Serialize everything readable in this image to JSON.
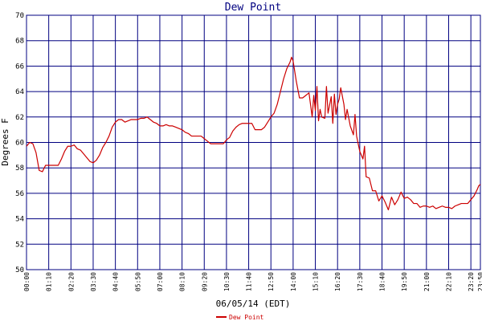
{
  "chart_data": {
    "type": "line",
    "title": "Dew Point",
    "xlabel": "06/05/14 (EDT)",
    "ylabel": "Degrees F",
    "ylim": [
      50,
      70
    ],
    "y_ticks": [
      50,
      52,
      54,
      56,
      58,
      60,
      62,
      64,
      66,
      68,
      70
    ],
    "x_ticks": [
      "00:00",
      "01:10",
      "02:20",
      "03:30",
      "04:40",
      "05:50",
      "07:00",
      "08:10",
      "09:20",
      "10:30",
      "11:40",
      "12:50",
      "14:00",
      "15:10",
      "16:20",
      "17:30",
      "18:40",
      "19:50",
      "21:00",
      "22:10",
      "23:20",
      "23:50"
    ],
    "grid": true,
    "legend_position": "bottom-center",
    "colors": {
      "series": "#cc0000",
      "grid": "#000080",
      "title": "#000080",
      "text": "#000000"
    },
    "series": [
      {
        "name": "Dew Point",
        "points": [
          [
            "00:00",
            59.7
          ],
          [
            "00:10",
            60.0
          ],
          [
            "00:20",
            59.9
          ],
          [
            "00:30",
            59.2
          ],
          [
            "00:40",
            57.8
          ],
          [
            "00:50",
            57.7
          ],
          [
            "01:00",
            58.2
          ],
          [
            "01:20",
            58.2
          ],
          [
            "01:40",
            58.2
          ],
          [
            "01:50",
            58.7
          ],
          [
            "02:00",
            59.3
          ],
          [
            "02:10",
            59.7
          ],
          [
            "02:20",
            59.7
          ],
          [
            "02:30",
            59.8
          ],
          [
            "02:40",
            59.5
          ],
          [
            "02:50",
            59.4
          ],
          [
            "03:00",
            59.1
          ],
          [
            "03:10",
            58.8
          ],
          [
            "03:20",
            58.5
          ],
          [
            "03:30",
            58.4
          ],
          [
            "03:40",
            58.6
          ],
          [
            "03:50",
            59.0
          ],
          [
            "04:00",
            59.6
          ],
          [
            "04:10",
            60.0
          ],
          [
            "04:20",
            60.5
          ],
          [
            "04:30",
            61.2
          ],
          [
            "04:40",
            61.6
          ],
          [
            "04:50",
            61.8
          ],
          [
            "05:00",
            61.8
          ],
          [
            "05:10",
            61.6
          ],
          [
            "05:20",
            61.7
          ],
          [
            "05:30",
            61.8
          ],
          [
            "05:40",
            61.8
          ],
          [
            "05:50",
            61.8
          ],
          [
            "06:00",
            61.9
          ],
          [
            "06:10",
            61.9
          ],
          [
            "06:20",
            62.0
          ],
          [
            "06:30",
            61.8
          ],
          [
            "06:40",
            61.6
          ],
          [
            "06:50",
            61.5
          ],
          [
            "07:00",
            61.3
          ],
          [
            "07:10",
            61.3
          ],
          [
            "07:20",
            61.4
          ],
          [
            "07:30",
            61.3
          ],
          [
            "07:40",
            61.3
          ],
          [
            "07:50",
            61.2
          ],
          [
            "08:00",
            61.1
          ],
          [
            "08:10",
            61.0
          ],
          [
            "08:20",
            60.8
          ],
          [
            "08:30",
            60.7
          ],
          [
            "08:40",
            60.5
          ],
          [
            "08:50",
            60.5
          ],
          [
            "09:00",
            60.5
          ],
          [
            "09:10",
            60.5
          ],
          [
            "09:20",
            60.3
          ],
          [
            "09:30",
            60.1
          ],
          [
            "09:40",
            59.9
          ],
          [
            "09:50",
            59.9
          ],
          [
            "10:00",
            59.9
          ],
          [
            "10:10",
            59.9
          ],
          [
            "10:20",
            59.9
          ],
          [
            "10:30",
            60.2
          ],
          [
            "10:40",
            60.4
          ],
          [
            "10:50",
            60.9
          ],
          [
            "11:00",
            61.2
          ],
          [
            "11:10",
            61.4
          ],
          [
            "11:20",
            61.5
          ],
          [
            "11:30",
            61.5
          ],
          [
            "11:40",
            61.5
          ],
          [
            "11:50",
            61.5
          ],
          [
            "12:00",
            61.0
          ],
          [
            "12:10",
            61.0
          ],
          [
            "12:20",
            61.0
          ],
          [
            "12:30",
            61.2
          ],
          [
            "12:40",
            61.6
          ],
          [
            "12:50",
            62.0
          ],
          [
            "13:00",
            62.3
          ],
          [
            "13:10",
            63.0
          ],
          [
            "13:20",
            64.0
          ],
          [
            "13:30",
            65.0
          ],
          [
            "13:40",
            65.8
          ],
          [
            "13:50",
            66.3
          ],
          [
            "13:55",
            66.7
          ],
          [
            "14:00",
            66.4
          ],
          [
            "14:10",
            64.8
          ],
          [
            "14:20",
            63.5
          ],
          [
            "14:30",
            63.5
          ],
          [
            "14:40",
            63.7
          ],
          [
            "14:50",
            63.9
          ],
          [
            "15:00",
            62.0
          ],
          [
            "15:05",
            63.7
          ],
          [
            "15:10",
            62.5
          ],
          [
            "15:15",
            64.4
          ],
          [
            "15:20",
            61.7
          ],
          [
            "15:25",
            62.6
          ],
          [
            "15:30",
            62.0
          ],
          [
            "15:40",
            61.9
          ],
          [
            "15:45",
            64.4
          ],
          [
            "15:50",
            62.3
          ],
          [
            "16:00",
            63.6
          ],
          [
            "16:05",
            61.5
          ],
          [
            "16:10",
            63.8
          ],
          [
            "16:15",
            62.2
          ],
          [
            "16:20",
            63.0
          ],
          [
            "16:25",
            63.4
          ],
          [
            "16:30",
            64.3
          ],
          [
            "16:40",
            63.0
          ],
          [
            "16:45",
            61.8
          ],
          [
            "16:50",
            62.6
          ],
          [
            "17:00",
            61.3
          ],
          [
            "17:10",
            60.6
          ],
          [
            "17:15",
            62.2
          ],
          [
            "17:20",
            60.5
          ],
          [
            "17:30",
            59.3
          ],
          [
            "17:40",
            58.7
          ],
          [
            "17:45",
            59.7
          ],
          [
            "17:50",
            57.3
          ],
          [
            "18:00",
            57.2
          ],
          [
            "18:10",
            56.2
          ],
          [
            "18:20",
            56.2
          ],
          [
            "18:30",
            55.4
          ],
          [
            "18:40",
            55.8
          ],
          [
            "18:50",
            55.3
          ],
          [
            "19:00",
            54.7
          ],
          [
            "19:10",
            55.7
          ],
          [
            "19:20",
            55.1
          ],
          [
            "19:30",
            55.5
          ],
          [
            "19:40",
            56.1
          ],
          [
            "19:50",
            55.6
          ],
          [
            "20:00",
            55.7
          ],
          [
            "20:10",
            55.5
          ],
          [
            "20:20",
            55.2
          ],
          [
            "20:30",
            55.2
          ],
          [
            "20:40",
            54.9
          ],
          [
            "20:50",
            55.0
          ],
          [
            "21:00",
            55.0
          ],
          [
            "21:10",
            54.9
          ],
          [
            "21:20",
            55.0
          ],
          [
            "21:30",
            54.8
          ],
          [
            "21:40",
            54.9
          ],
          [
            "21:50",
            55.0
          ],
          [
            "22:00",
            54.9
          ],
          [
            "22:10",
            54.9
          ],
          [
            "22:20",
            54.8
          ],
          [
            "22:30",
            55.0
          ],
          [
            "22:40",
            55.1
          ],
          [
            "22:50",
            55.2
          ],
          [
            "23:00",
            55.2
          ],
          [
            "23:10",
            55.2
          ],
          [
            "23:20",
            55.5
          ],
          [
            "23:30",
            55.8
          ],
          [
            "23:40",
            56.3
          ],
          [
            "23:45",
            56.6
          ],
          [
            "23:50",
            56.7
          ]
        ]
      }
    ]
  }
}
